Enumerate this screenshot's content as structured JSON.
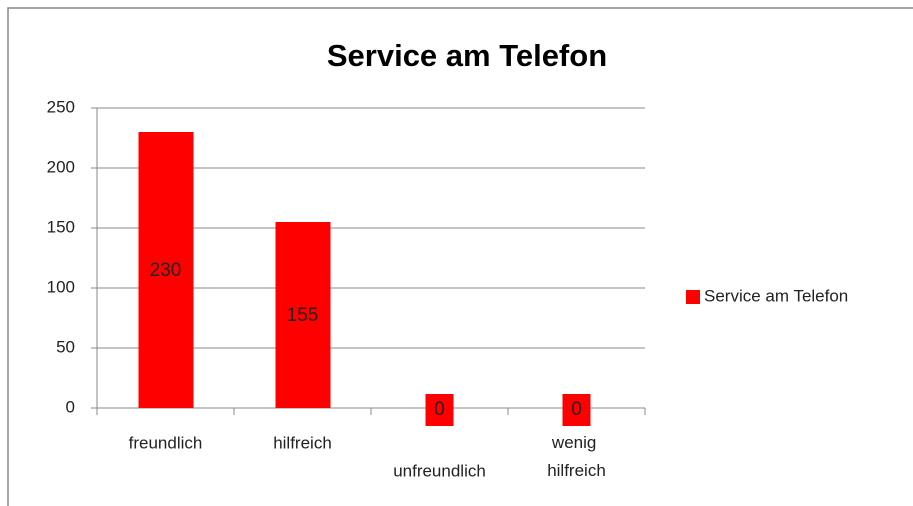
{
  "chart_data": {
    "type": "bar",
    "title": "Service am Telefon",
    "categories": [
      "freundlich",
      "hilfreich",
      "unfreundlich",
      "wenig hilfreich"
    ],
    "series": [
      {
        "name": "Service am Telefon",
        "color": "#ff0000",
        "values": [
          230,
          155,
          0,
          0
        ]
      }
    ],
    "ylim": [
      0,
      250
    ],
    "yticks": [
      0,
      50,
      100,
      150,
      200,
      250
    ],
    "grid": true,
    "legend": "right"
  }
}
